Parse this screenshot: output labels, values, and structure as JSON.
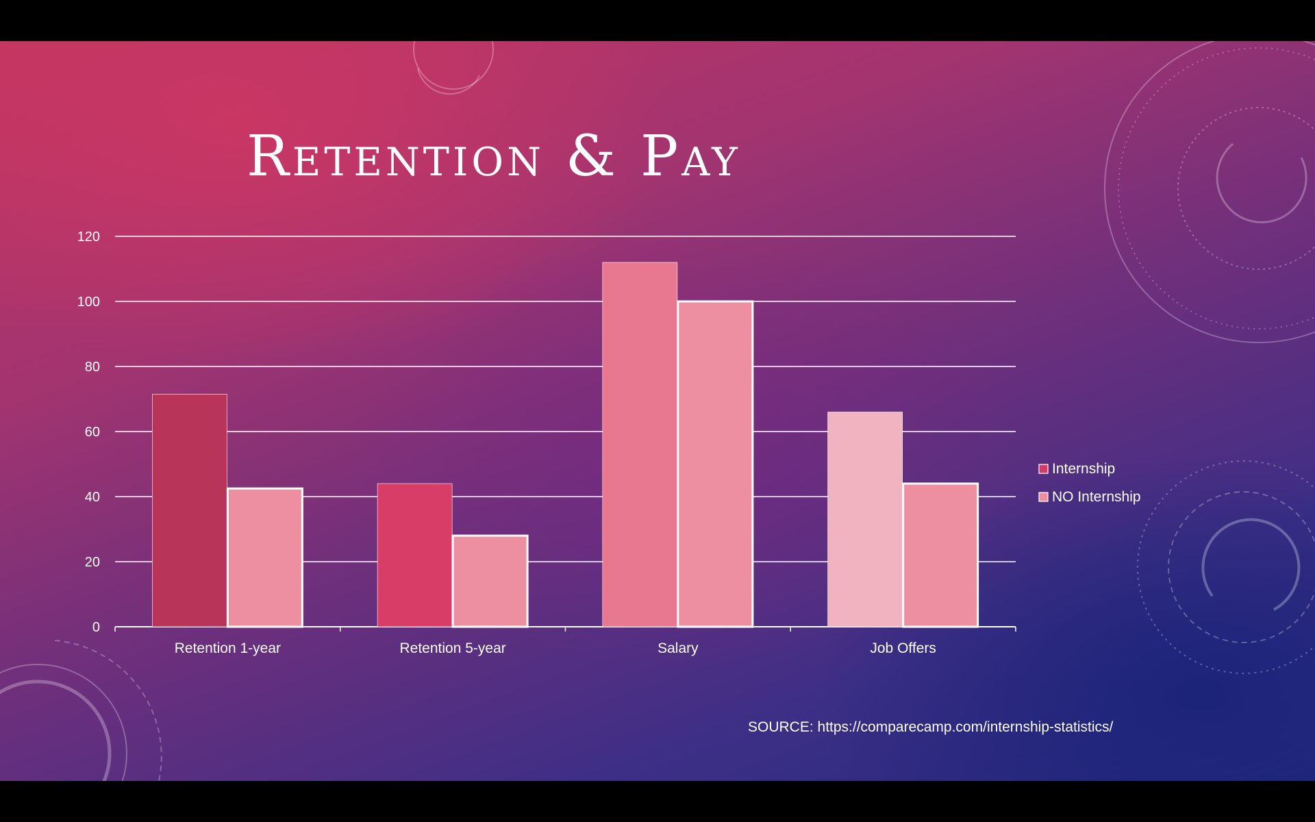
{
  "slide": {
    "title": "Retention & Pay",
    "source": "SOURCE: https://comparecamp.com/internship-statistics/"
  },
  "chart_data": {
    "type": "bar",
    "title": "",
    "xlabel": "",
    "ylabel": "",
    "ylim": [
      0,
      120
    ],
    "yticks": [
      0,
      20,
      40,
      60,
      80,
      100,
      120
    ],
    "grid": true,
    "legend": "right",
    "categories": [
      "Retention 1-year",
      "Retention 5-year",
      "Salary",
      "Job Offers"
    ],
    "series": [
      {
        "name": "Internship",
        "values": [
          71.5,
          44,
          112,
          66
        ],
        "color": "#d43a68",
        "point_colors": [
          "#b83458",
          "#d83d68",
          "#e77890",
          "#f2b3c0"
        ]
      },
      {
        "name": "NO Internship",
        "values": [
          42.5,
          28,
          100,
          44
        ],
        "color": "#ee8fa1"
      }
    ],
    "colors": {
      "axis": "#ffffff",
      "grid": "#ffffff",
      "bar_outline": "#ffffff"
    }
  }
}
